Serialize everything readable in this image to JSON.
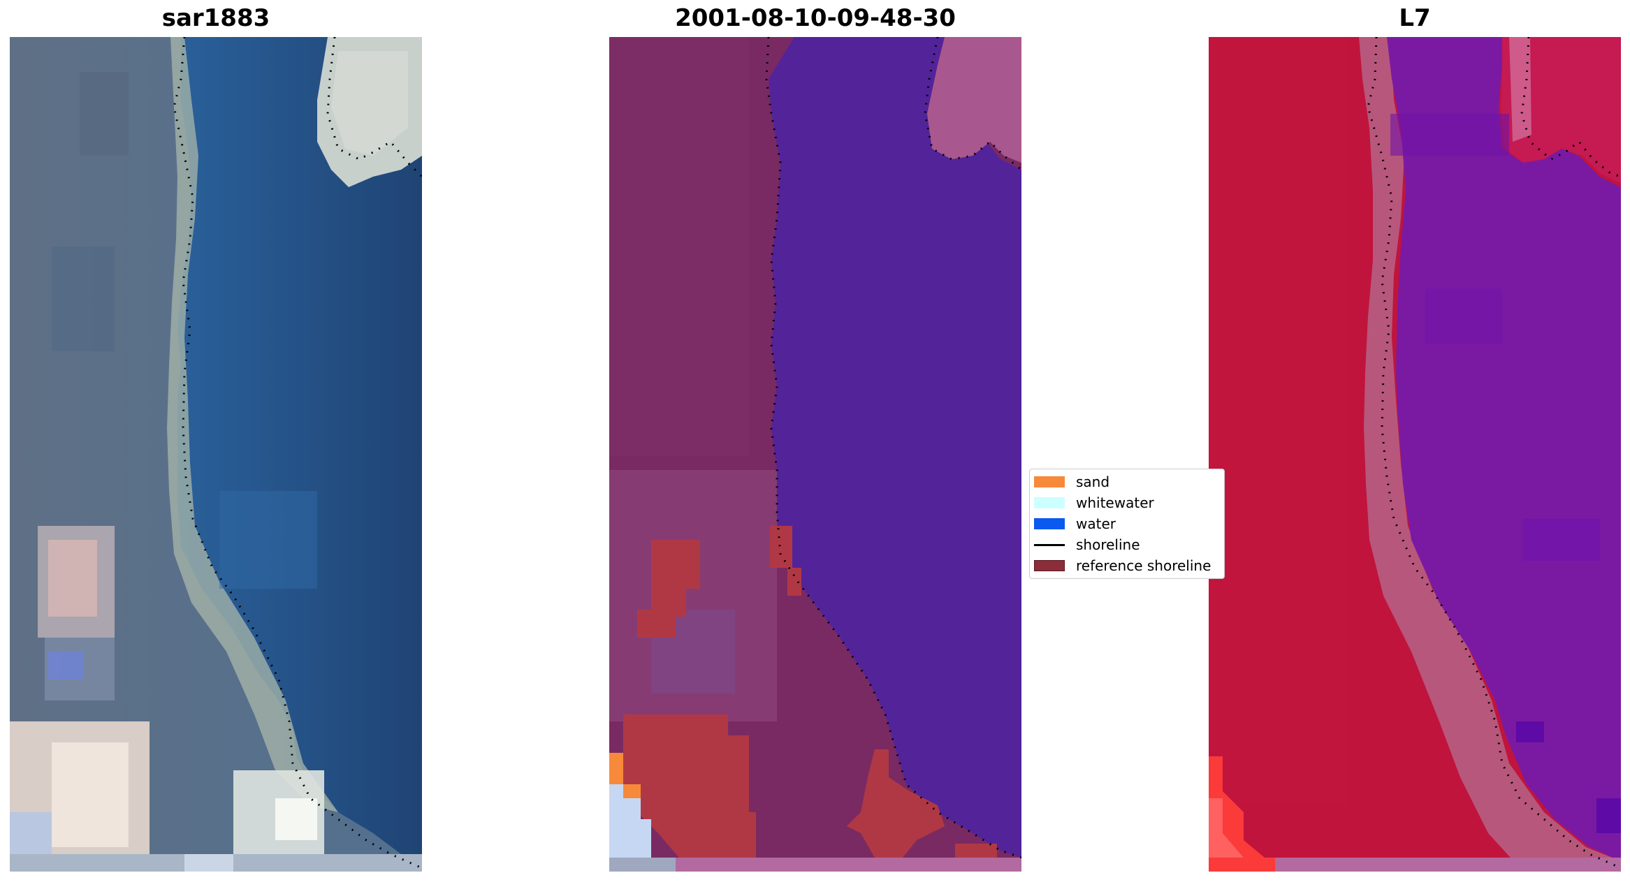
{
  "panels": [
    {
      "title": "sar1883"
    },
    {
      "title": "2001-08-10-09-48-30"
    },
    {
      "title": "L7"
    }
  ],
  "legend": {
    "items": [
      {
        "label": "sand",
        "color": "#f7893a",
        "kind": "patch"
      },
      {
        "label": "whitewater",
        "color": "#ccffff",
        "kind": "patch"
      },
      {
        "label": "water",
        "color": "#0a5aef",
        "kind": "patch"
      },
      {
        "label": "shoreline",
        "color": "#000000",
        "kind": "line"
      },
      {
        "label": "reference shoreline",
        "color": "#8b2e3a",
        "kind": "patch"
      }
    ]
  },
  "colors": {
    "rgb_water": "#24497a",
    "rgb_land": "#5a7088",
    "class_land": "#7a2a62",
    "class_water": "#53239a",
    "class_sand_overlay": "#b03845",
    "ndwi_land": "#c0143d",
    "ndwi_water": "#7a1aa2"
  }
}
